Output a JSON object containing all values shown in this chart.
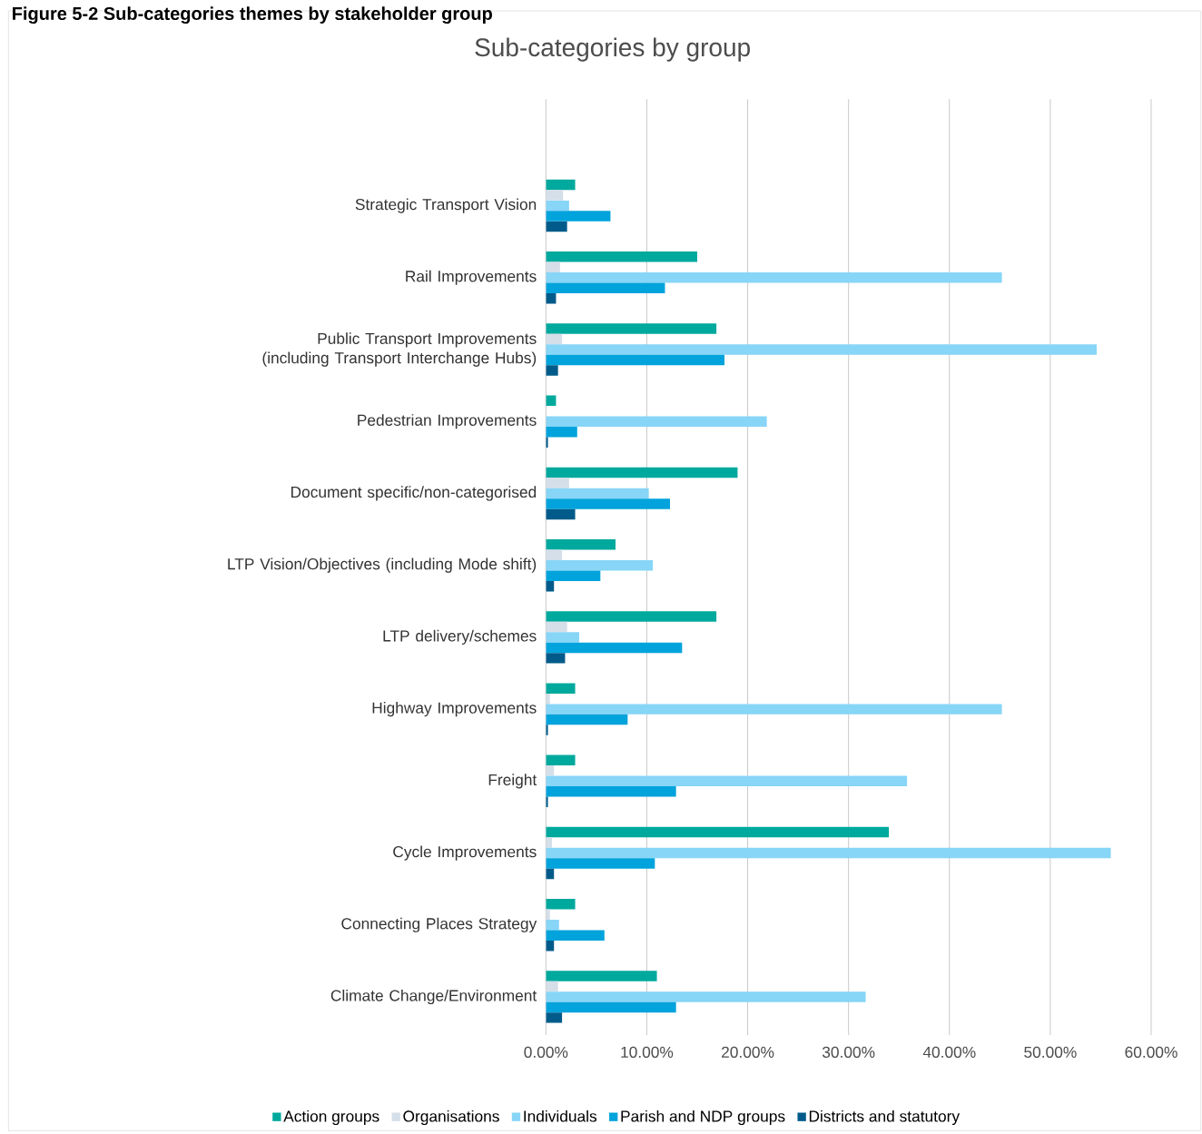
{
  "chart_data": {
    "type": "bar",
    "orientation": "horizontal",
    "title": "Sub-categories by group",
    "annotations": [
      "Figure 5-2 Sub-categories themes by stakeholder group"
    ],
    "categories": [
      "Strategic Transport Vision",
      "Rail Improvements",
      "Public Transport Improvements (including Transport Interchange Hubs)",
      "Pedestrian Improvements",
      "Document specific/non-categorised",
      "LTP Vision/Objectives (including Mode shift)",
      "LTP delivery/schemes",
      "Highway Improvements",
      "Freight",
      "Cycle Improvements",
      "Connecting Places Strategy",
      "Climate Change/Environment"
    ],
    "series": [
      {
        "name": "Action groups",
        "color": "#00a99d",
        "values": [
          2.9,
          15.0,
          16.9,
          1.0,
          19.0,
          6.9,
          16.9,
          2.9,
          2.9,
          34.0,
          2.9,
          11.0
        ]
      },
      {
        "name": "Organisations",
        "color": "#d5dfe9",
        "values": [
          1.7,
          1.4,
          1.6,
          0,
          2.3,
          1.6,
          2.1,
          0.4,
          0.8,
          0.6,
          0.4,
          1.2
        ]
      },
      {
        "name": "Individuals",
        "color": "#87d5f7",
        "values": [
          2.3,
          45.2,
          54.6,
          21.9,
          10.2,
          10.6,
          3.3,
          45.2,
          35.8,
          56.0,
          1.3,
          31.7
        ]
      },
      {
        "name": "Parish and NDP groups",
        "color": "#00a3dc",
        "values": [
          6.4,
          11.8,
          17.7,
          3.1,
          12.3,
          5.4,
          13.5,
          8.1,
          12.9,
          10.8,
          5.8,
          12.9
        ]
      },
      {
        "name": "Districts and statutory",
        "color": "#005b8a",
        "values": [
          2.1,
          1.0,
          1.2,
          0.2,
          2.9,
          0.8,
          1.9,
          0.2,
          0.2,
          0.8,
          0.8,
          1.6
        ]
      }
    ],
    "xlim": [
      0,
      60
    ],
    "xticks": [
      {
        "value": 0,
        "label": "0.00%"
      },
      {
        "value": 10,
        "label": "10.00%"
      },
      {
        "value": 20,
        "label": "20.00%"
      },
      {
        "value": 30,
        "label": "30.00%"
      },
      {
        "value": 40,
        "label": "40.00%"
      },
      {
        "value": 50,
        "label": "50.00%"
      },
      {
        "value": 60,
        "label": "60.00%"
      }
    ],
    "grid": "x",
    "legend": "bottom"
  }
}
